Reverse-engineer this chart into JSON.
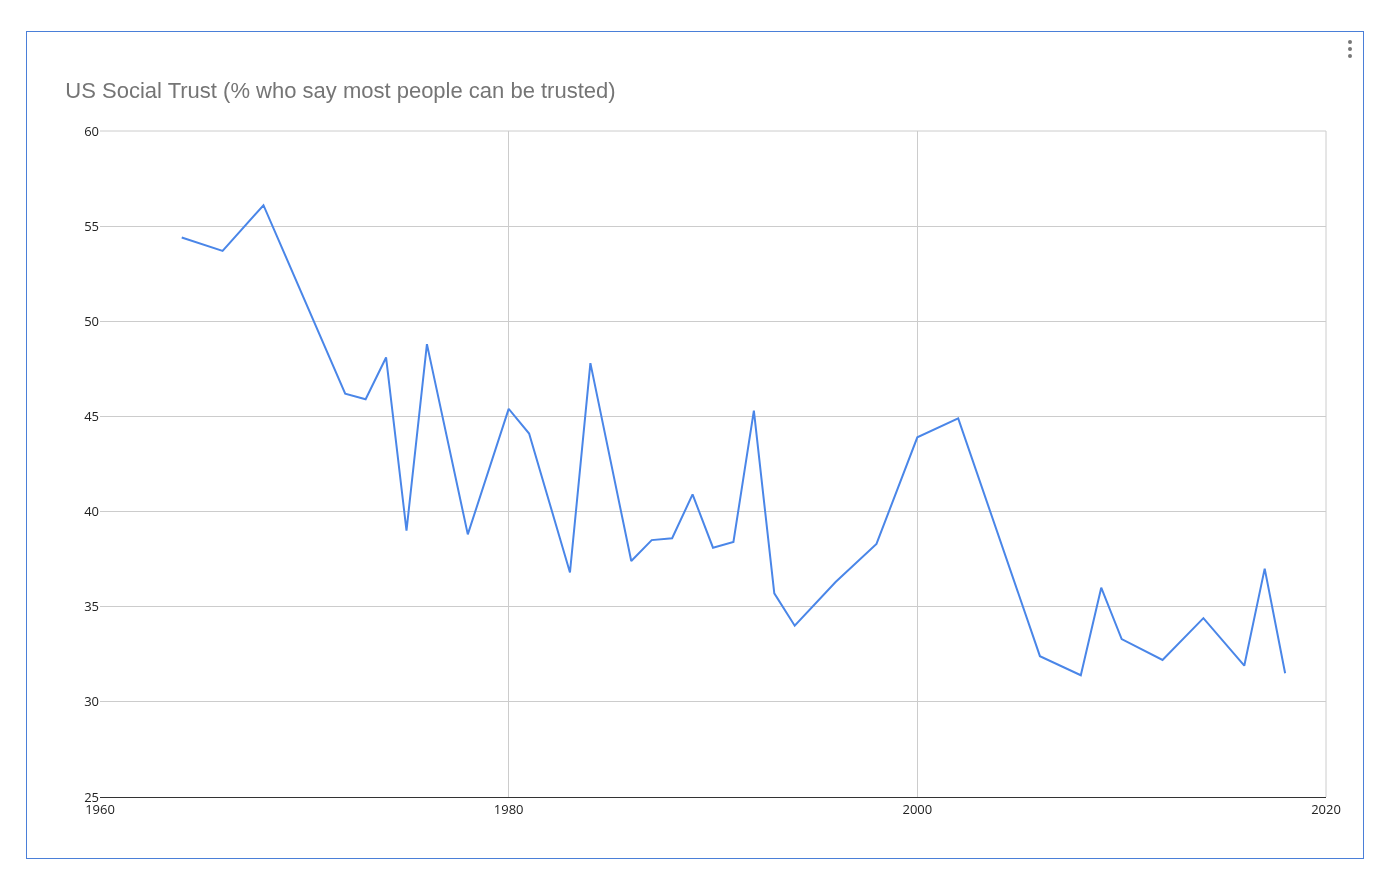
{
  "chart_data": {
    "type": "line",
    "title": "US Social Trust (% who say most people can be trusted)",
    "x": [
      1964,
      1966,
      1968,
      1972,
      1973,
      1974,
      1975,
      1976,
      1978,
      1980,
      1981,
      1983,
      1984,
      1986,
      1987,
      1988,
      1989,
      1990,
      1991,
      1992,
      1993,
      1994,
      1996,
      1998,
      2000,
      2002,
      2006,
      2008,
      2009,
      2010,
      2012,
      2014,
      2016,
      2017,
      2018
    ],
    "series": [
      {
        "color": "#4a86e8",
        "values": [
          54.4,
          53.7,
          56.1,
          46.2,
          45.9,
          48.1,
          39.0,
          48.8,
          38.8,
          45.4,
          44.1,
          36.8,
          47.8,
          37.4,
          38.5,
          38.6,
          40.9,
          38.1,
          38.4,
          45.3,
          35.7,
          34.0,
          36.3,
          38.3,
          43.9,
          44.9,
          32.4,
          31.4,
          36.0,
          33.3,
          32.2,
          34.4,
          31.9,
          37.0,
          31.5
        ]
      }
    ],
    "xlim": [
      1960,
      2020
    ],
    "xticks": [
      1960,
      1980,
      2000,
      2020
    ],
    "ylim": [
      25,
      60
    ],
    "yticks": [
      25,
      30,
      35,
      40,
      45,
      50,
      55,
      60
    ],
    "grid": true,
    "marker": "none",
    "line_style": "solid"
  }
}
